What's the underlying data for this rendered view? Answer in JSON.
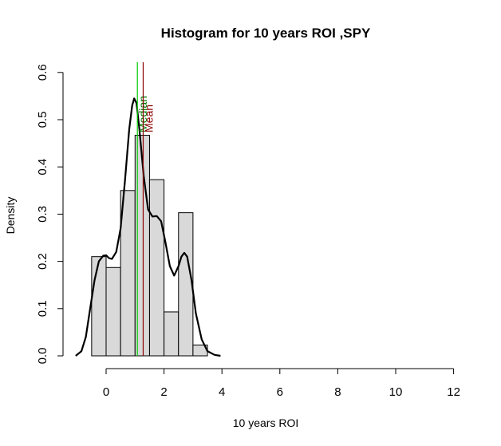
{
  "chart_data": {
    "type": "bar",
    "title": "Histogram for 10 years ROI ,SPY",
    "xlabel": "10 years ROI",
    "ylabel": "Density",
    "xlim": [
      -1,
      12
    ],
    "ylim": [
      0,
      0.6
    ],
    "x_ticks": [
      "0",
      "2",
      "4",
      "6",
      "8",
      "10",
      "12"
    ],
    "y_ticks": [
      "0.0",
      "0.1",
      "0.2",
      "0.3",
      "0.4",
      "0.5",
      "0.6"
    ],
    "bins": [
      {
        "x0": -0.5,
        "x1": 0.0,
        "density": 0.21
      },
      {
        "x0": 0.0,
        "x1": 0.5,
        "density": 0.187
      },
      {
        "x0": 0.5,
        "x1": 1.0,
        "density": 0.35
      },
      {
        "x0": 1.0,
        "x1": 1.5,
        "density": 0.467
      },
      {
        "x0": 1.5,
        "x1": 2.0,
        "density": 0.373
      },
      {
        "x0": 2.0,
        "x1": 2.5,
        "density": 0.093
      },
      {
        "x0": 2.5,
        "x1": 3.0,
        "density": 0.303
      },
      {
        "x0": 3.0,
        "x1": 3.5,
        "density": 0.023
      }
    ],
    "bar_color": "#d9d9d9",
    "density_curve": {
      "color": "#000000",
      "points": [
        [
          -1.05,
          0.0
        ],
        [
          -0.85,
          0.01
        ],
        [
          -0.7,
          0.04
        ],
        [
          -0.55,
          0.1
        ],
        [
          -0.4,
          0.16
        ],
        [
          -0.25,
          0.2
        ],
        [
          -0.1,
          0.212
        ],
        [
          0.0,
          0.213
        ],
        [
          0.1,
          0.207
        ],
        [
          0.2,
          0.205
        ],
        [
          0.35,
          0.22
        ],
        [
          0.5,
          0.27
        ],
        [
          0.65,
          0.37
        ],
        [
          0.8,
          0.48
        ],
        [
          0.9,
          0.53
        ],
        [
          0.97,
          0.545
        ],
        [
          1.05,
          0.535
        ],
        [
          1.15,
          0.48
        ],
        [
          1.3,
          0.38
        ],
        [
          1.45,
          0.31
        ],
        [
          1.6,
          0.295
        ],
        [
          1.75,
          0.296
        ],
        [
          1.9,
          0.285
        ],
        [
          2.05,
          0.24
        ],
        [
          2.2,
          0.19
        ],
        [
          2.35,
          0.17
        ],
        [
          2.5,
          0.19
        ],
        [
          2.6,
          0.21
        ],
        [
          2.7,
          0.218
        ],
        [
          2.8,
          0.21
        ],
        [
          2.95,
          0.16
        ],
        [
          3.1,
          0.09
        ],
        [
          3.3,
          0.035
        ],
        [
          3.5,
          0.01
        ],
        [
          3.75,
          0.002
        ],
        [
          3.95,
          0.0
        ]
      ]
    },
    "vlines": [
      {
        "label": "Median",
        "x": 1.08,
        "color": "#00cc00",
        "label_color": "#007a00"
      },
      {
        "label": "Mean",
        "x": 1.28,
        "color": "#8b0000",
        "label_color": "#8b0000"
      }
    ]
  }
}
